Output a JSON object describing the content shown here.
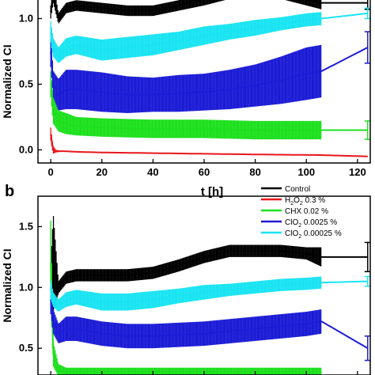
{
  "chart_data": [
    {
      "panel": "a",
      "type": "line",
      "xlabel": "t [h]",
      "ylabel": "Normalized CI",
      "xlim": [
        -5,
        125
      ],
      "ylim": [
        -0.1,
        1.25
      ],
      "xticks": [
        "0",
        "20",
        "40",
        "60",
        "80",
        "100",
        "120"
      ],
      "xtick_values": [
        0,
        20,
        40,
        60,
        80,
        100,
        120
      ],
      "yticks": [
        "0.0",
        "0.5",
        "1.0"
      ],
      "ytick_values": [
        0.0,
        0.5,
        1.0
      ],
      "series": [
        {
          "name": "Control",
          "color": "#000000",
          "x": [
            0,
            1,
            3,
            6,
            10,
            20,
            30,
            40,
            50,
            60,
            70,
            80,
            90,
            100,
            106,
            124
          ],
          "y": [
            1.05,
            1.2,
            1.0,
            1.08,
            1.1,
            1.08,
            1.06,
            1.06,
            1.1,
            1.15,
            1.2,
            1.22,
            1.2,
            1.15,
            1.12,
            1.12
          ],
          "err": [
            0.05,
            0.08,
            0.04,
            0.04,
            0.04,
            0.04,
            0.04,
            0.04,
            0.04,
            0.05,
            0.05,
            0.05,
            0.05,
            0.05,
            0.05,
            0.05
          ]
        },
        {
          "name": "H2O2 0.3 %",
          "color": "#e8171b",
          "x": [
            0,
            0.5,
            1,
            2,
            5,
            10,
            20,
            40,
            60,
            80,
            106,
            124
          ],
          "y": [
            0.12,
            0.05,
            0.0,
            -0.01,
            -0.01,
            -0.015,
            -0.02,
            -0.025,
            -0.03,
            -0.035,
            -0.04,
            -0.05
          ],
          "err": [
            0.05,
            0.04,
            0.03,
            0.01,
            0,
            0,
            0,
            0,
            0,
            0,
            0,
            0
          ]
        },
        {
          "name": "CHX 0.02 %",
          "color": "#1ee01e",
          "x": [
            0,
            1,
            3,
            6,
            10,
            20,
            40,
            60,
            80,
            100,
            106,
            124
          ],
          "y": [
            0.5,
            0.3,
            0.22,
            0.2,
            0.18,
            0.17,
            0.16,
            0.16,
            0.15,
            0.15,
            0.15,
            0.15
          ],
          "err": [
            0.1,
            0.1,
            0.08,
            0.08,
            0.07,
            0.07,
            0.07,
            0.07,
            0.07,
            0.07,
            0.07,
            0.07
          ]
        },
        {
          "name": "ClO2 0.0025 %",
          "color": "#1c1cd6",
          "x": [
            0,
            1,
            3,
            6,
            10,
            20,
            30,
            40,
            50,
            60,
            70,
            80,
            90,
            100,
            106,
            124
          ],
          "y": [
            0.75,
            0.5,
            0.42,
            0.46,
            0.46,
            0.44,
            0.42,
            0.42,
            0.43,
            0.44,
            0.46,
            0.49,
            0.53,
            0.58,
            0.6,
            0.78
          ],
          "err": [
            0.12,
            0.1,
            0.12,
            0.15,
            0.15,
            0.15,
            0.14,
            0.13,
            0.14,
            0.14,
            0.15,
            0.16,
            0.18,
            0.2,
            0.2,
            0.12
          ]
        },
        {
          "name": "ClO2 0.00025 %",
          "color": "#1ae4f2",
          "x": [
            0,
            1,
            3,
            6,
            10,
            20,
            30,
            40,
            50,
            60,
            70,
            80,
            90,
            100,
            106,
            124
          ],
          "y": [
            0.9,
            0.78,
            0.72,
            0.78,
            0.8,
            0.76,
            0.78,
            0.8,
            0.83,
            0.87,
            0.9,
            0.93,
            0.96,
            0.99,
            1.0,
            1.04
          ],
          "err": [
            0.08,
            0.07,
            0.06,
            0.07,
            0.07,
            0.08,
            0.08,
            0.08,
            0.07,
            0.07,
            0.06,
            0.06,
            0.05,
            0.05,
            0.05,
            0.04
          ]
        }
      ]
    },
    {
      "panel": "b",
      "type": "line",
      "xlabel": "",
      "ylabel": "Normalized CI",
      "xlim": [
        -5,
        125
      ],
      "ylim": [
        0.28,
        1.75
      ],
      "yticks": [
        "0.5",
        "1.0",
        "1.5"
      ],
      "ytick_values": [
        0.5,
        1.0,
        1.5
      ],
      "series": [
        {
          "name": "Control",
          "color": "#000000",
          "x": [
            0,
            1,
            3,
            6,
            10,
            20,
            30,
            40,
            50,
            60,
            70,
            80,
            90,
            100,
            106,
            124
          ],
          "y": [
            1.05,
            1.2,
            1.0,
            1.08,
            1.1,
            1.1,
            1.1,
            1.12,
            1.18,
            1.25,
            1.3,
            1.3,
            1.3,
            1.28,
            1.25,
            1.25
          ],
          "err": [
            0.15,
            0.4,
            0.05,
            0.05,
            0.05,
            0.05,
            0.05,
            0.05,
            0.05,
            0.05,
            0.05,
            0.05,
            0.05,
            0.05,
            0.08,
            0.12
          ]
        },
        {
          "name": "CHX 0.02 %",
          "color": "#1ee01e",
          "x": [
            0,
            1,
            3,
            6,
            10,
            20,
            40,
            60,
            80,
            100,
            106
          ],
          "y": [
            1.2,
            0.45,
            0.32,
            0.3,
            0.3,
            0.3,
            0.3,
            0.3,
            0.3,
            0.3,
            0.3
          ],
          "err": [
            0.35,
            0.1,
            0.05,
            0.04,
            0.04,
            0.04,
            0.04,
            0.04,
            0.04,
            0.04,
            0.04
          ]
        },
        {
          "name": "ClO2 0.0025 %",
          "color": "#1c1cd6",
          "x": [
            0,
            1,
            3,
            6,
            10,
            20,
            30,
            40,
            50,
            60,
            70,
            80,
            90,
            100,
            106,
            124
          ],
          "y": [
            0.9,
            0.72,
            0.62,
            0.66,
            0.66,
            0.62,
            0.6,
            0.6,
            0.61,
            0.62,
            0.64,
            0.66,
            0.68,
            0.7,
            0.72,
            0.5
          ],
          "err": [
            0.12,
            0.1,
            0.08,
            0.1,
            0.1,
            0.1,
            0.1,
            0.1,
            0.1,
            0.1,
            0.1,
            0.1,
            0.1,
            0.1,
            0.1,
            0.1
          ]
        },
        {
          "name": "ClO2 0.00025 %",
          "color": "#1ae4f2",
          "x": [
            0,
            1,
            3,
            6,
            10,
            20,
            30,
            40,
            50,
            60,
            70,
            80,
            90,
            100,
            106,
            124
          ],
          "y": [
            0.98,
            0.9,
            0.85,
            0.9,
            0.92,
            0.88,
            0.88,
            0.9,
            0.93,
            0.96,
            0.98,
            1.0,
            1.02,
            1.03,
            1.04,
            1.05
          ],
          "err": [
            0.08,
            0.06,
            0.05,
            0.06,
            0.06,
            0.07,
            0.07,
            0.07,
            0.06,
            0.06,
            0.05,
            0.05,
            0.05,
            0.05,
            0.05,
            0.04
          ]
        }
      ]
    }
  ],
  "legend": [
    {
      "label_parts": [
        [
          "Control",
          ""
        ]
      ],
      "color": "#000000"
    },
    {
      "label_parts": [
        [
          "H",
          ""
        ],
        [
          "2",
          "sub"
        ],
        [
          "O",
          ""
        ],
        [
          "2",
          "sub"
        ],
        [
          " 0.3 %",
          ""
        ]
      ],
      "color": "#e8171b"
    },
    {
      "label_parts": [
        [
          "CHX 0.02 %",
          ""
        ]
      ],
      "color": "#1ee01e"
    },
    {
      "label_parts": [
        [
          "ClO",
          ""
        ],
        [
          "2",
          "sub"
        ],
        [
          " 0.0025 %",
          ""
        ]
      ],
      "color": "#1c1cd6"
    },
    {
      "label_parts": [
        [
          "ClO",
          ""
        ],
        [
          "2",
          "sub"
        ],
        [
          " 0.00025 %",
          ""
        ]
      ],
      "color": "#1ae4f2"
    }
  ]
}
